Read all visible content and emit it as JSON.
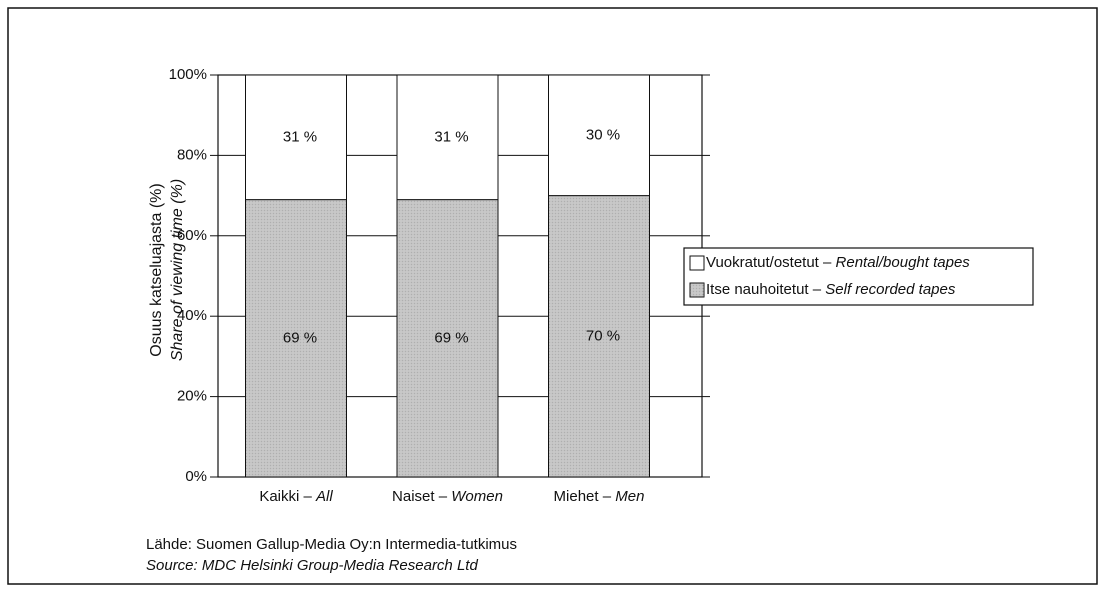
{
  "chart_data": {
    "type": "stacked_bar",
    "ylabel": [
      "Osuus katseluajasta (%)",
      "Share of viewing time (%)"
    ],
    "categories": [
      "Kaikki – All",
      "Naiset – Women",
      "Miehet – Men"
    ],
    "series": [
      {
        "name": "Vuokratut/ostetut – Rental/bought tapes",
        "color": "#ffffff",
        "values": [
          31,
          31,
          30
        ],
        "value_labels": [
          "31 %",
          "31 %",
          "30 %"
        ]
      },
      {
        "name": "Itse nauhoitetut – Self recorded tapes",
        "color": "#c4c4c4",
        "values": [
          69,
          69,
          70
        ],
        "value_labels": [
          "69 %",
          "69 %",
          "70 %"
        ]
      }
    ],
    "ylim": [
      0,
      100
    ],
    "yticks": [
      {
        "value": 0,
        "label": "0%"
      },
      {
        "value": 20,
        "label": "20%"
      },
      {
        "value": 40,
        "label": "40%"
      },
      {
        "value": 60,
        "label": "60%"
      },
      {
        "value": 80,
        "label": "80%"
      },
      {
        "value": 100,
        "label": "100%"
      }
    ],
    "grid": true,
    "legend": "right",
    "source": [
      "Lähde: Suomen Gallup-Media Oy:n Intermedia-tutkimus",
      "Source:  MDC Helsinki Group-Media Research Ltd"
    ]
  }
}
